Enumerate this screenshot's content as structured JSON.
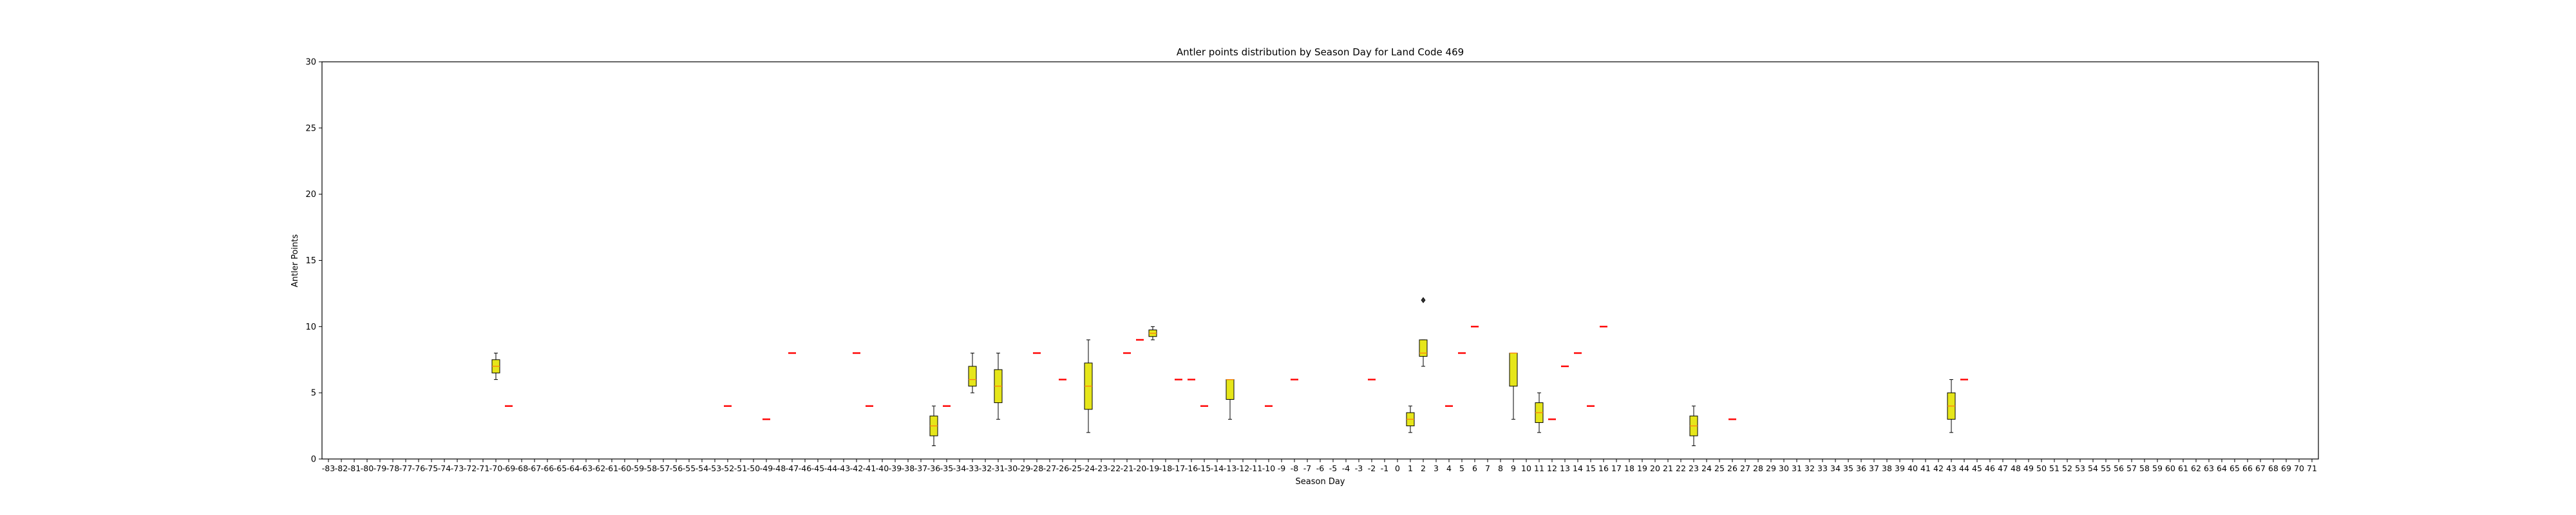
{
  "chart_data": {
    "type": "box",
    "title": "Antler points distribution by Season Day for Land Code 469",
    "xlabel": "Season Day",
    "ylabel": "Antler Points",
    "ylim": [
      0,
      30
    ],
    "yticks": [
      0,
      5,
      10,
      15,
      20,
      25,
      30
    ],
    "x_categories_range": [
      -83,
      71
    ],
    "grid": false,
    "box_color": "#e6e61a",
    "median_color": "#ff7f0e",
    "single_value_color": "#ff0000",
    "boxes": [
      {
        "day": -70,
        "whislo": 6,
        "q1": 6.5,
        "med": 7,
        "q3": 7.5,
        "whishi": 8,
        "fliers": []
      },
      {
        "day": -69,
        "whislo": 4,
        "q1": 4,
        "med": 4,
        "q3": 4,
        "whishi": 4,
        "fliers": []
      },
      {
        "day": -52,
        "whislo": 4,
        "q1": 4,
        "med": 4,
        "q3": 4,
        "whishi": 4,
        "fliers": []
      },
      {
        "day": -49,
        "whislo": 3,
        "q1": 3,
        "med": 3,
        "q3": 3,
        "whishi": 3,
        "fliers": []
      },
      {
        "day": -47,
        "whislo": 8,
        "q1": 8,
        "med": 8,
        "q3": 8,
        "whishi": 8,
        "fliers": []
      },
      {
        "day": -42,
        "whislo": 8,
        "q1": 8,
        "med": 8,
        "q3": 8,
        "whishi": 8,
        "fliers": []
      },
      {
        "day": -41,
        "whislo": 4,
        "q1": 4,
        "med": 4,
        "q3": 4,
        "whishi": 4,
        "fliers": []
      },
      {
        "day": -36,
        "whislo": 1,
        "q1": 1.75,
        "med": 2.5,
        "q3": 3.25,
        "whishi": 4,
        "fliers": []
      },
      {
        "day": -35,
        "whislo": 4,
        "q1": 4,
        "med": 4,
        "q3": 4,
        "whishi": 4,
        "fliers": []
      },
      {
        "day": -33,
        "whislo": 5,
        "q1": 5.5,
        "med": 6,
        "q3": 7,
        "whishi": 8,
        "fliers": []
      },
      {
        "day": -31,
        "whislo": 3,
        "q1": 4.25,
        "med": 5.5,
        "q3": 6.75,
        "whishi": 8,
        "fliers": []
      },
      {
        "day": -28,
        "whislo": 8,
        "q1": 8,
        "med": 8,
        "q3": 8,
        "whishi": 8,
        "fliers": []
      },
      {
        "day": -26,
        "whislo": 6,
        "q1": 6,
        "med": 6,
        "q3": 6,
        "whishi": 6,
        "fliers": []
      },
      {
        "day": -24,
        "whislo": 2,
        "q1": 3.75,
        "med": 5.5,
        "q3": 7.25,
        "whishi": 9,
        "fliers": []
      },
      {
        "day": -21,
        "whislo": 8,
        "q1": 8,
        "med": 8,
        "q3": 8,
        "whishi": 8,
        "fliers": []
      },
      {
        "day": -20,
        "whislo": 9,
        "q1": 9,
        "med": 9,
        "q3": 9,
        "whishi": 9,
        "fliers": []
      },
      {
        "day": -19,
        "whislo": 9,
        "q1": 9.25,
        "med": 9.5,
        "q3": 9.75,
        "whishi": 10,
        "fliers": []
      },
      {
        "day": -17,
        "whislo": 6,
        "q1": 6,
        "med": 6,
        "q3": 6,
        "whishi": 6,
        "fliers": []
      },
      {
        "day": -16,
        "whislo": 6,
        "q1": 6,
        "med": 6,
        "q3": 6,
        "whishi": 6,
        "fliers": []
      },
      {
        "day": -15,
        "whislo": 4,
        "q1": 4,
        "med": 4,
        "q3": 4,
        "whishi": 4,
        "fliers": []
      },
      {
        "day": -13,
        "whislo": 3,
        "q1": 4.5,
        "med": 6,
        "q3": 6,
        "whishi": 6,
        "fliers": []
      },
      {
        "day": -10,
        "whislo": 4,
        "q1": 4,
        "med": 4,
        "q3": 4,
        "whishi": 4,
        "fliers": []
      },
      {
        "day": -8,
        "whislo": 6,
        "q1": 6,
        "med": 6,
        "q3": 6,
        "whishi": 6,
        "fliers": []
      },
      {
        "day": -2,
        "whislo": 6,
        "q1": 6,
        "med": 6,
        "q3": 6,
        "whishi": 6,
        "fliers": []
      },
      {
        "day": 1,
        "whislo": 2,
        "q1": 2.5,
        "med": 3,
        "q3": 3.5,
        "whishi": 4,
        "fliers": []
      },
      {
        "day": 2,
        "whislo": 7,
        "q1": 7.75,
        "med": 8,
        "q3": 9,
        "whishi": 9,
        "fliers": [
          12
        ]
      },
      {
        "day": 4,
        "whislo": 4,
        "q1": 4,
        "med": 4,
        "q3": 4,
        "whishi": 4,
        "fliers": []
      },
      {
        "day": 5,
        "whislo": 8,
        "q1": 8,
        "med": 8,
        "q3": 8,
        "whishi": 8,
        "fliers": []
      },
      {
        "day": 6,
        "whislo": 10,
        "q1": 10,
        "med": 10,
        "q3": 10,
        "whishi": 10,
        "fliers": []
      },
      {
        "day": 9,
        "whislo": 3,
        "q1": 5.5,
        "med": 8,
        "q3": 8,
        "whishi": 8,
        "fliers": []
      },
      {
        "day": 11,
        "whislo": 2,
        "q1": 2.75,
        "med": 3.5,
        "q3": 4.25,
        "whishi": 5,
        "fliers": []
      },
      {
        "day": 12,
        "whislo": 3,
        "q1": 3,
        "med": 3,
        "q3": 3,
        "whishi": 3,
        "fliers": []
      },
      {
        "day": 13,
        "whislo": 7,
        "q1": 7,
        "med": 7,
        "q3": 7,
        "whishi": 7,
        "fliers": []
      },
      {
        "day": 14,
        "whislo": 8,
        "q1": 8,
        "med": 8,
        "q3": 8,
        "whishi": 8,
        "fliers": []
      },
      {
        "day": 15,
        "whislo": 4,
        "q1": 4,
        "med": 4,
        "q3": 4,
        "whishi": 4,
        "fliers": []
      },
      {
        "day": 16,
        "whislo": 10,
        "q1": 10,
        "med": 10,
        "q3": 10,
        "whishi": 10,
        "fliers": []
      },
      {
        "day": 23,
        "whislo": 1,
        "q1": 1.75,
        "med": 2.5,
        "q3": 3.25,
        "whishi": 4,
        "fliers": []
      },
      {
        "day": 26,
        "whislo": 3,
        "q1": 3,
        "med": 3,
        "q3": 3,
        "whishi": 3,
        "fliers": []
      },
      {
        "day": 43,
        "whislo": 2,
        "q1": 3,
        "med": 4,
        "q3": 5,
        "whishi": 6,
        "fliers": []
      },
      {
        "day": 44,
        "whislo": 6,
        "q1": 6,
        "med": 6,
        "q3": 6,
        "whishi": 6,
        "fliers": []
      }
    ]
  }
}
